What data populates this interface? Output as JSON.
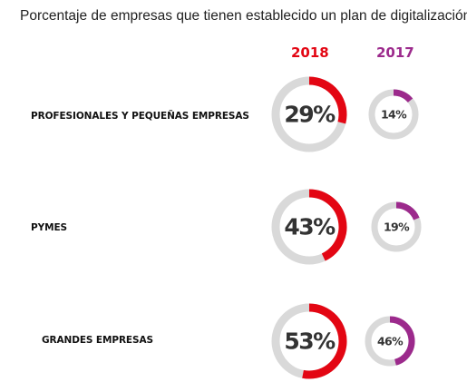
{
  "chart_data": {
    "type": "donut",
    "title": "Porcentaje de empresas que tienen establecido un plan de digitalización",
    "series": [
      {
        "name": "2018",
        "color": "#e30613",
        "values": [
          29,
          43,
          53
        ],
        "labels": [
          "29%",
          "43%",
          "53%"
        ]
      },
      {
        "name": "2017",
        "color": "#9c2a8c",
        "values": [
          14,
          19,
          46
        ],
        "labels": [
          "14%",
          "19%",
          "46%"
        ]
      }
    ],
    "categories": [
      "PROFESIONALES Y PEQUEÑAS EMPRESAS",
      "PYMES",
      "GRANDES EMPRESAS"
    ],
    "track_color": "#d9d9d9"
  }
}
